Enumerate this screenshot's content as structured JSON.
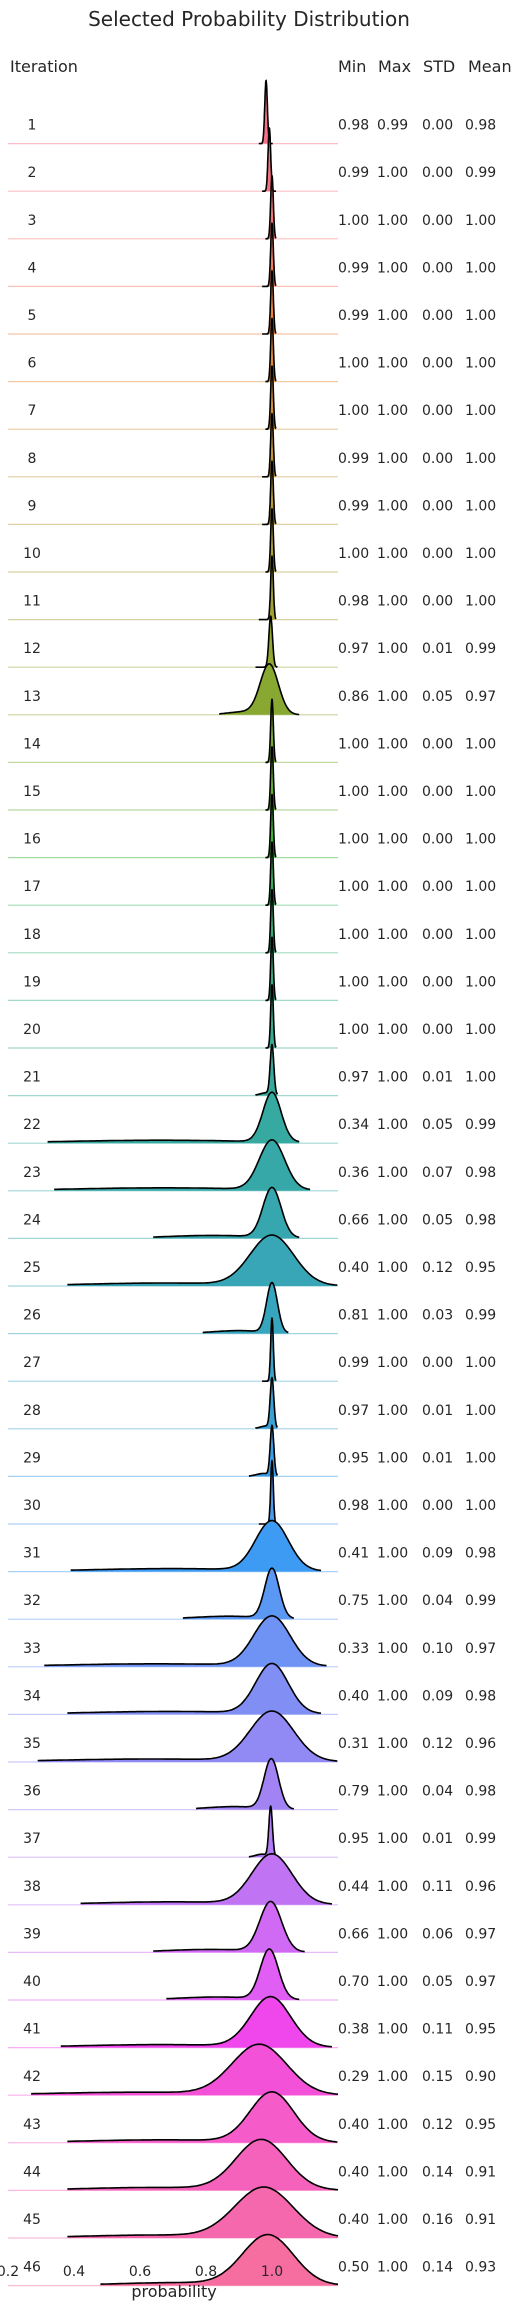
{
  "chart_data": {
    "type": "ridgeline",
    "title": "Selected Probability Distribution",
    "xlabel": "probability",
    "x_ticks": [
      "0.2",
      "0.4",
      "0.6",
      "0.8",
      "1.0"
    ],
    "xlim": [
      0.2,
      1.2
    ],
    "columns": [
      "Iteration",
      "Min",
      "Max",
      "STD",
      "Mean"
    ],
    "rows": [
      {
        "iteration": "1",
        "min": "0.98",
        "max": "0.99",
        "std": "0.00",
        "mean": "0.98",
        "color": "#f77189"
      },
      {
        "iteration": "2",
        "min": "0.99",
        "max": "1.00",
        "std": "0.00",
        "mean": "0.99",
        "color": "#f7727f"
      },
      {
        "iteration": "3",
        "min": "1.00",
        "max": "1.00",
        "std": "0.00",
        "mean": "1.00",
        "color": "#f77474"
      },
      {
        "iteration": "4",
        "min": "0.99",
        "max": "1.00",
        "std": "0.00",
        "mean": "1.00",
        "color": "#f47a5f"
      },
      {
        "iteration": "5",
        "min": "0.99",
        "max": "1.00",
        "std": "0.00",
        "mean": "1.00",
        "color": "#ef8039"
      },
      {
        "iteration": "6",
        "min": "1.00",
        "max": "1.00",
        "std": "0.00",
        "mean": "1.00",
        "color": "#e08831"
      },
      {
        "iteration": "7",
        "min": "1.00",
        "max": "1.00",
        "std": "0.00",
        "mean": "1.00",
        "color": "#d08f31"
      },
      {
        "iteration": "8",
        "min": "0.99",
        "max": "1.00",
        "std": "0.00",
        "mean": "1.00",
        "color": "#c39532"
      },
      {
        "iteration": "9",
        "min": "0.99",
        "max": "1.00",
        "std": "0.00",
        "mean": "1.00",
        "color": "#b79a32"
      },
      {
        "iteration": "10",
        "min": "1.00",
        "max": "1.00",
        "std": "0.00",
        "mean": "1.00",
        "color": "#ab9e32"
      },
      {
        "iteration": "11",
        "min": "0.98",
        "max": "1.00",
        "std": "0.00",
        "mean": "1.00",
        "color": "#a0a131"
      },
      {
        "iteration": "12",
        "min": "0.97",
        "max": "1.00",
        "std": "0.01",
        "mean": "0.99",
        "color": "#94a531"
      },
      {
        "iteration": "13",
        "min": "0.86",
        "max": "1.00",
        "std": "0.05",
        "mean": "0.97",
        "color": "#88a831"
      },
      {
        "iteration": "14",
        "min": "1.00",
        "max": "1.00",
        "std": "0.00",
        "mean": "1.00",
        "color": "#78ab31"
      },
      {
        "iteration": "15",
        "min": "1.00",
        "max": "1.00",
        "std": "0.00",
        "mean": "1.00",
        "color": "#61af31"
      },
      {
        "iteration": "16",
        "min": "1.00",
        "max": "1.00",
        "std": "0.00",
        "mean": "1.00",
        "color": "#3ab332"
      },
      {
        "iteration": "17",
        "min": "1.00",
        "max": "1.00",
        "std": "0.00",
        "mean": "1.00",
        "color": "#33b05c"
      },
      {
        "iteration": "18",
        "min": "1.00",
        "max": "1.00",
        "std": "0.00",
        "mean": "1.00",
        "color": "#34ae76"
      },
      {
        "iteration": "19",
        "min": "1.00",
        "max": "1.00",
        "std": "0.00",
        "mean": "1.00",
        "color": "#35ac86"
      },
      {
        "iteration": "20",
        "min": "1.00",
        "max": "1.00",
        "std": "0.00",
        "mean": "1.00",
        "color": "#35ab91"
      },
      {
        "iteration": "21",
        "min": "0.97",
        "max": "1.00",
        "std": "0.01",
        "mean": "1.00",
        "color": "#36aa9a"
      },
      {
        "iteration": "22",
        "min": "0.34",
        "max": "1.00",
        "std": "0.05",
        "mean": "0.99",
        "color": "#36a9a1"
      },
      {
        "iteration": "23",
        "min": "0.36",
        "max": "1.00",
        "std": "0.07",
        "mean": "0.98",
        "color": "#37a8a8"
      },
      {
        "iteration": "24",
        "min": "0.66",
        "max": "1.00",
        "std": "0.05",
        "mean": "0.98",
        "color": "#37a7af"
      },
      {
        "iteration": "25",
        "min": "0.40",
        "max": "1.00",
        "std": "0.12",
        "mean": "0.95",
        "color": "#38a6b6"
      },
      {
        "iteration": "26",
        "min": "0.81",
        "max": "1.00",
        "std": "0.03",
        "mean": "0.99",
        "color": "#38a5be"
      },
      {
        "iteration": "27",
        "min": "0.99",
        "max": "1.00",
        "std": "0.00",
        "mean": "1.00",
        "color": "#39a3c8"
      },
      {
        "iteration": "28",
        "min": "0.97",
        "max": "1.00",
        "std": "0.01",
        "mean": "1.00",
        "color": "#3aa1d5"
      },
      {
        "iteration": "29",
        "min": "0.95",
        "max": "1.00",
        "std": "0.01",
        "mean": "1.00",
        "color": "#3b9ee6"
      },
      {
        "iteration": "30",
        "min": "0.98",
        "max": "1.00",
        "std": "0.00",
        "mean": "1.00",
        "color": "#4a9aef"
      },
      {
        "iteration": "31",
        "min": "0.41",
        "max": "1.00",
        "std": "0.09",
        "mean": "0.98",
        "color": "#3e9bf4"
      },
      {
        "iteration": "32",
        "min": "0.75",
        "max": "1.00",
        "std": "0.04",
        "mean": "0.99",
        "color": "#5a98f4"
      },
      {
        "iteration": "33",
        "min": "0.33",
        "max": "1.00",
        "std": "0.10",
        "mean": "0.97",
        "color": "#6f93f4"
      },
      {
        "iteration": "34",
        "min": "0.40",
        "max": "1.00",
        "std": "0.09",
        "mean": "0.98",
        "color": "#818ef4"
      },
      {
        "iteration": "35",
        "min": "0.31",
        "max": "1.00",
        "std": "0.12",
        "mean": "0.96",
        "color": "#9189f4"
      },
      {
        "iteration": "36",
        "min": "0.79",
        "max": "1.00",
        "std": "0.04",
        "mean": "0.98",
        "color": "#a183f4"
      },
      {
        "iteration": "37",
        "min": "0.95",
        "max": "1.00",
        "std": "0.01",
        "mean": "0.99",
        "color": "#b17cf4"
      },
      {
        "iteration": "38",
        "min": "0.44",
        "max": "1.00",
        "std": "0.11",
        "mean": "0.96",
        "color": "#c074f4"
      },
      {
        "iteration": "39",
        "min": "0.66",
        "max": "1.00",
        "std": "0.06",
        "mean": "0.97",
        "color": "#d06af4"
      },
      {
        "iteration": "40",
        "min": "0.70",
        "max": "1.00",
        "std": "0.05",
        "mean": "0.97",
        "color": "#e15ef4"
      },
      {
        "iteration": "41",
        "min": "0.38",
        "max": "1.00",
        "std": "0.11",
        "mean": "0.95",
        "color": "#f047ec"
      },
      {
        "iteration": "42",
        "min": "0.29",
        "max": "1.00",
        "std": "0.15",
        "mean": "0.90",
        "color": "#f451d9"
      },
      {
        "iteration": "43",
        "min": "0.40",
        "max": "1.00",
        "std": "0.12",
        "mean": "0.95",
        "color": "#f55bc9"
      },
      {
        "iteration": "44",
        "min": "0.40",
        "max": "1.00",
        "std": "0.14",
        "mean": "0.91",
        "color": "#f562bb"
      },
      {
        "iteration": "45",
        "min": "0.40",
        "max": "1.00",
        "std": "0.16",
        "mean": "0.91",
        "color": "#f668ad"
      },
      {
        "iteration": "46",
        "min": "0.50",
        "max": "1.00",
        "std": "0.14",
        "mean": "0.93",
        "color": "#f66d9f"
      }
    ]
  }
}
